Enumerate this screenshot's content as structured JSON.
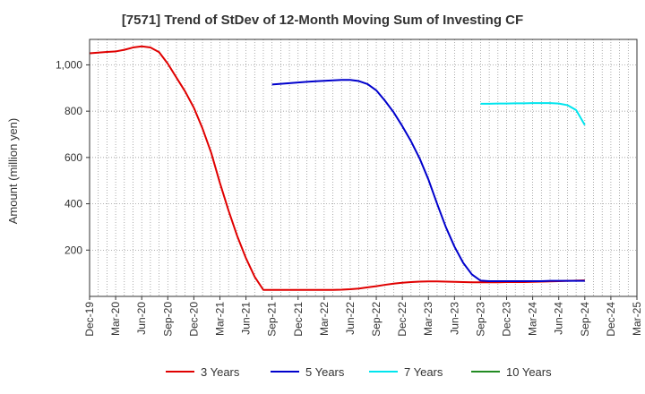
{
  "chart_data": {
    "type": "line",
    "title": "[7571]  Trend of StDev of 12-Month Moving Sum of Investing CF",
    "ylabel": "Amount (million yen)",
    "xlabel": "",
    "x_tick_labels": [
      "Dec-19",
      "Mar-20",
      "Jun-20",
      "Sep-20",
      "Dec-20",
      "Mar-21",
      "Jun-21",
      "Sep-21",
      "Dec-21",
      "Mar-22",
      "Jun-22",
      "Sep-22",
      "Dec-22",
      "Mar-23",
      "Jun-23",
      "Sep-23",
      "Dec-23",
      "Mar-24",
      "Jun-24",
      "Sep-24",
      "Dec-24",
      "Mar-25"
    ],
    "y_ticks": [
      200,
      400,
      600,
      800,
      1000
    ],
    "y_tick_labels": [
      "200",
      "400",
      "600",
      "800",
      "1,000"
    ],
    "ylim": [
      0,
      1110
    ],
    "xlim": [
      "2019-12",
      "2025-03"
    ],
    "grid": true,
    "legend_position": "bottom",
    "series": [
      {
        "name": "3 Years",
        "color": "#e00000",
        "points": [
          [
            "2019-12",
            1050
          ],
          [
            "2020-01",
            1053
          ],
          [
            "2020-02",
            1056
          ],
          [
            "2020-03",
            1058
          ],
          [
            "2020-04",
            1065
          ],
          [
            "2020-05",
            1075
          ],
          [
            "2020-06",
            1080
          ],
          [
            "2020-07",
            1075
          ],
          [
            "2020-08",
            1055
          ],
          [
            "2020-09",
            1005
          ],
          [
            "2020-10",
            945
          ],
          [
            "2020-11",
            885
          ],
          [
            "2020-12",
            815
          ],
          [
            "2021-01",
            725
          ],
          [
            "2021-02",
            620
          ],
          [
            "2021-03",
            490
          ],
          [
            "2021-04",
            370
          ],
          [
            "2021-05",
            260
          ],
          [
            "2021-06",
            165
          ],
          [
            "2021-07",
            85
          ],
          [
            "2021-08",
            28
          ],
          [
            "2021-09",
            28
          ],
          [
            "2021-10",
            28
          ],
          [
            "2021-11",
            28
          ],
          [
            "2021-12",
            28
          ],
          [
            "2022-01",
            28
          ],
          [
            "2022-02",
            28
          ],
          [
            "2022-03",
            28
          ],
          [
            "2022-04",
            28
          ],
          [
            "2022-05",
            29
          ],
          [
            "2022-06",
            31
          ],
          [
            "2022-07",
            34
          ],
          [
            "2022-08",
            39
          ],
          [
            "2022-09",
            44
          ],
          [
            "2022-10",
            50
          ],
          [
            "2022-11",
            55
          ],
          [
            "2022-12",
            59
          ],
          [
            "2023-01",
            62
          ],
          [
            "2023-02",
            64
          ],
          [
            "2023-03",
            65
          ],
          [
            "2023-04",
            65
          ],
          [
            "2023-05",
            64
          ],
          [
            "2023-06",
            63
          ],
          [
            "2023-07",
            62
          ],
          [
            "2023-08",
            61
          ],
          [
            "2023-09",
            61
          ],
          [
            "2023-10",
            61
          ],
          [
            "2023-11",
            61
          ],
          [
            "2023-12",
            62
          ],
          [
            "2024-01",
            62
          ],
          [
            "2024-02",
            62
          ],
          [
            "2024-03",
            63
          ],
          [
            "2024-04",
            64
          ],
          [
            "2024-05",
            65
          ],
          [
            "2024-06",
            66
          ],
          [
            "2024-07",
            67
          ],
          [
            "2024-08",
            68
          ],
          [
            "2024-09",
            69
          ]
        ]
      },
      {
        "name": "5 Years",
        "color": "#0000cc",
        "points": [
          [
            "2021-09",
            915
          ],
          [
            "2021-10",
            918
          ],
          [
            "2021-11",
            921
          ],
          [
            "2021-12",
            924
          ],
          [
            "2022-01",
            927
          ],
          [
            "2022-02",
            929
          ],
          [
            "2022-03",
            931
          ],
          [
            "2022-04",
            933
          ],
          [
            "2022-05",
            935
          ],
          [
            "2022-06",
            935
          ],
          [
            "2022-07",
            930
          ],
          [
            "2022-08",
            917
          ],
          [
            "2022-09",
            890
          ],
          [
            "2022-10",
            845
          ],
          [
            "2022-11",
            795
          ],
          [
            "2022-12",
            735
          ],
          [
            "2023-01",
            670
          ],
          [
            "2023-02",
            595
          ],
          [
            "2023-03",
            505
          ],
          [
            "2023-04",
            400
          ],
          [
            "2023-05",
            300
          ],
          [
            "2023-06",
            215
          ],
          [
            "2023-07",
            145
          ],
          [
            "2023-08",
            95
          ],
          [
            "2023-09",
            68
          ],
          [
            "2023-10",
            66
          ],
          [
            "2023-11",
            66
          ],
          [
            "2023-12",
            66
          ],
          [
            "2024-01",
            66
          ],
          [
            "2024-02",
            66
          ],
          [
            "2024-03",
            66
          ],
          [
            "2024-04",
            66
          ],
          [
            "2024-05",
            67
          ],
          [
            "2024-06",
            67
          ],
          [
            "2024-07",
            67
          ],
          [
            "2024-08",
            67
          ],
          [
            "2024-09",
            67
          ]
        ]
      },
      {
        "name": "7 Years",
        "color": "#00e5ee",
        "points": [
          [
            "2023-09",
            832
          ],
          [
            "2023-10",
            832
          ],
          [
            "2023-11",
            833
          ],
          [
            "2023-12",
            833
          ],
          [
            "2024-01",
            834
          ],
          [
            "2024-02",
            834
          ],
          [
            "2024-03",
            835
          ],
          [
            "2024-04",
            835
          ],
          [
            "2024-05",
            835
          ],
          [
            "2024-06",
            833
          ],
          [
            "2024-07",
            826
          ],
          [
            "2024-08",
            805
          ],
          [
            "2024-09",
            740
          ]
        ]
      },
      {
        "name": "10 Years",
        "color": "#228b22",
        "points": []
      }
    ]
  }
}
